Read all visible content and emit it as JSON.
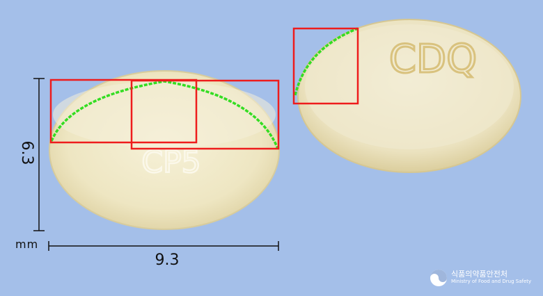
{
  "dimensions": {
    "height": "6.3",
    "width": "9.3",
    "unit": "mm"
  },
  "tablets": {
    "left": {
      "imprint": "CP5"
    },
    "right": {
      "imprint": "CDQ"
    }
  },
  "logo": {
    "korean": "식품의약품안전처",
    "english": "Ministry of Food and Drug Safety"
  },
  "colors": {
    "background": "#a4bfe9",
    "capsule": "#efe9c8",
    "highlight_box": "#ee1c1c",
    "edge_trace": "#33dd22"
  }
}
